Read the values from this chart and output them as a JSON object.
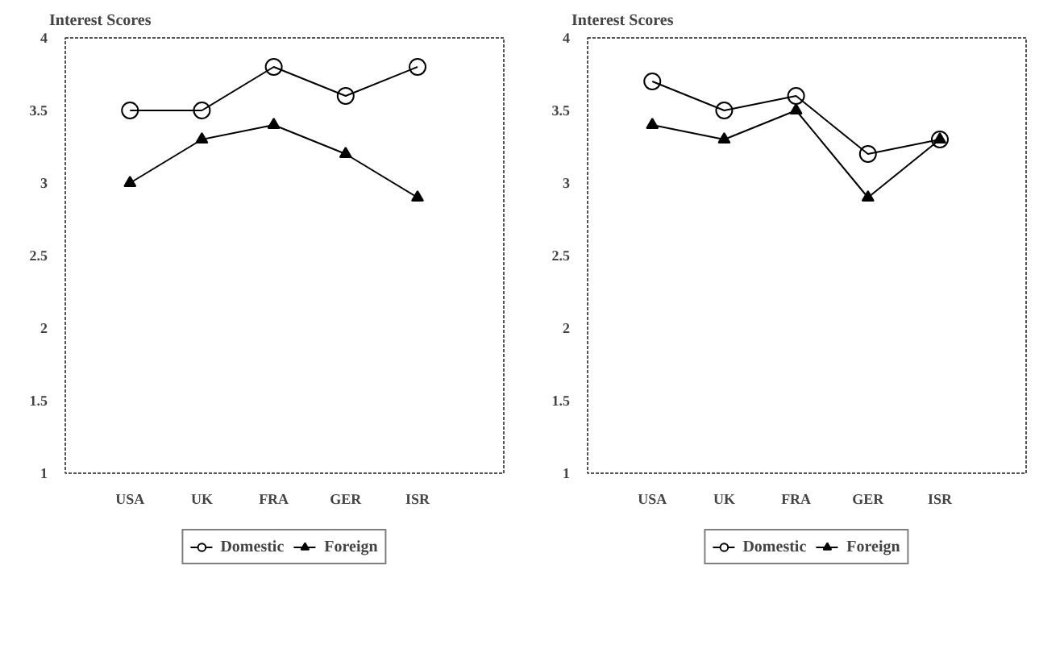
{
  "chart_data": [
    {
      "type": "line",
      "ylabel": "Interest Scores",
      "categories": [
        "USA",
        "UK",
        "FRA",
        "GER",
        "ISR"
      ],
      "ylim": [
        1,
        4
      ],
      "yticks": [
        1,
        1.5,
        2,
        2.5,
        3,
        3.5,
        4
      ],
      "grid": false,
      "legend": "bottom",
      "series": [
        {
          "name": "Domestic",
          "color": "#000000",
          "marker": "circle",
          "values": [
            3.5,
            3.5,
            3.8,
            3.6,
            3.8
          ]
        },
        {
          "name": "Foreign",
          "color": "#000000",
          "marker": "triangle",
          "values": [
            3.0,
            3.3,
            3.4,
            3.2,
            2.9
          ]
        }
      ]
    },
    {
      "type": "line",
      "ylabel": "Interest Scores",
      "categories": [
        "USA",
        "UK",
        "FRA",
        "GER",
        "ISR"
      ],
      "ylim": [
        1,
        4
      ],
      "yticks": [
        1,
        1.5,
        2,
        2.5,
        3,
        3.5,
        4
      ],
      "grid": false,
      "legend": "bottom",
      "series": [
        {
          "name": "Domestic",
          "color": "#000000",
          "marker": "circle",
          "values": [
            3.7,
            3.5,
            3.6,
            3.2,
            3.3
          ]
        },
        {
          "name": "Foreign",
          "color": "#000000",
          "marker": "triangle",
          "values": [
            3.4,
            3.3,
            3.5,
            2.9,
            3.3
          ]
        }
      ]
    }
  ]
}
